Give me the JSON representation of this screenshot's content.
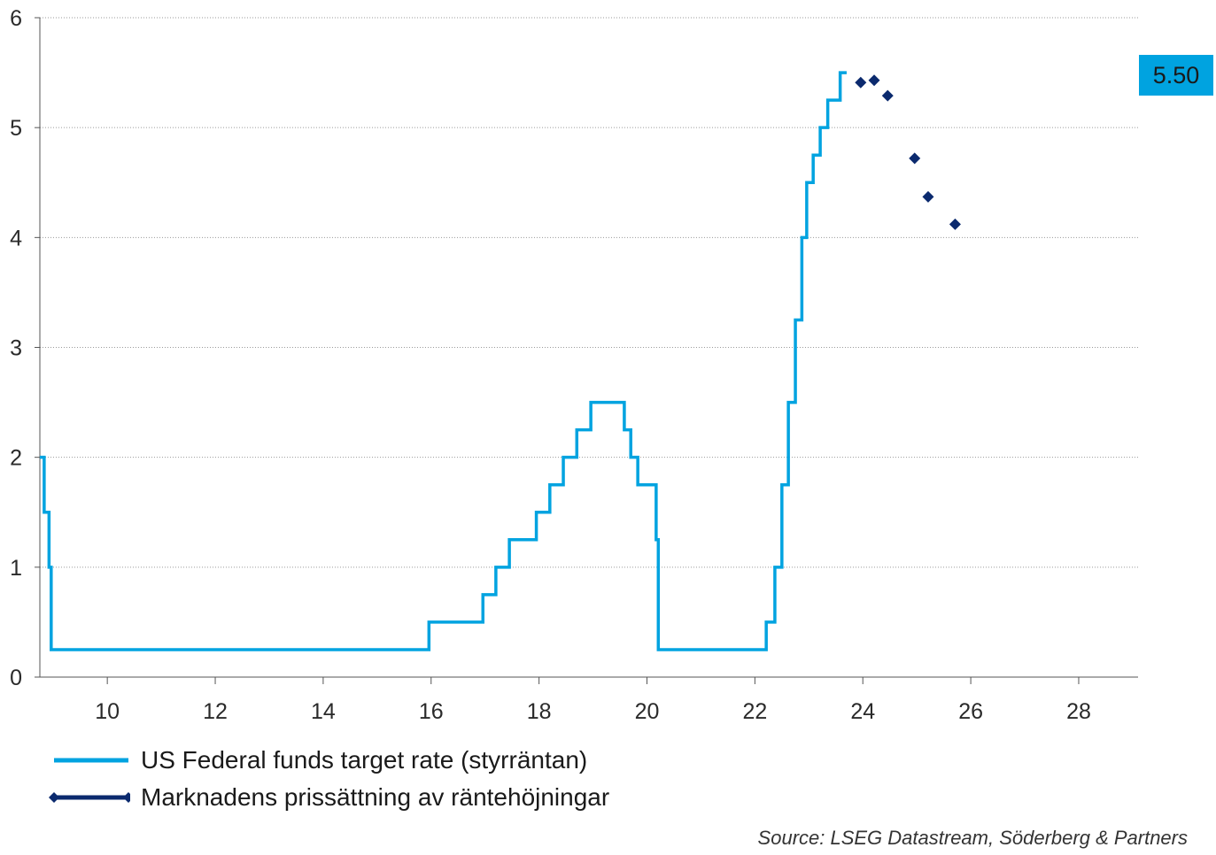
{
  "chart_data": {
    "type": "line",
    "title": "",
    "xlabel": "",
    "ylabel": "",
    "xlim": [
      8.75,
      29.1
    ],
    "ylim": [
      0,
      6
    ],
    "x_ticks": [
      10,
      12,
      14,
      16,
      18,
      20,
      22,
      24,
      26,
      28
    ],
    "y_ticks": [
      0,
      1,
      2,
      3,
      4,
      5,
      6
    ],
    "grid": "horizontal dotted",
    "colors": {
      "fed_rate": "#00a3e0",
      "market": "#0b2a6e",
      "badge": "#00a3e0"
    },
    "series": [
      {
        "name": "US Federal funds target rate (styrräntan)",
        "style": "step",
        "points": [
          [
            8.75,
            2.0
          ],
          [
            8.83,
            1.5
          ],
          [
            8.92,
            1.0
          ],
          [
            8.96,
            0.25
          ],
          [
            15.96,
            0.5
          ],
          [
            16.96,
            0.75
          ],
          [
            17.2,
            1.0
          ],
          [
            17.45,
            1.25
          ],
          [
            17.95,
            1.5
          ],
          [
            18.2,
            1.75
          ],
          [
            18.45,
            2.0
          ],
          [
            18.7,
            2.25
          ],
          [
            18.96,
            2.5
          ],
          [
            19.58,
            2.25
          ],
          [
            19.7,
            2.0
          ],
          [
            19.83,
            1.75
          ],
          [
            20.17,
            1.25
          ],
          [
            20.21,
            0.25
          ],
          [
            22.21,
            0.5
          ],
          [
            22.37,
            1.0
          ],
          [
            22.5,
            1.75
          ],
          [
            22.62,
            2.5
          ],
          [
            22.75,
            3.25
          ],
          [
            22.87,
            4.0
          ],
          [
            22.96,
            4.5
          ],
          [
            23.08,
            4.75
          ],
          [
            23.21,
            5.0
          ],
          [
            23.35,
            5.25
          ],
          [
            23.58,
            5.5
          ],
          [
            23.7,
            5.5
          ]
        ]
      },
      {
        "name": "Marknadens prissättning av räntehöjningar",
        "style": "markers",
        "points": [
          [
            23.96,
            5.41
          ],
          [
            24.21,
            5.43
          ],
          [
            24.46,
            5.29
          ],
          [
            24.96,
            4.72
          ],
          [
            25.21,
            4.37
          ],
          [
            25.71,
            4.12
          ]
        ]
      }
    ],
    "badge_label": "5.50",
    "source": "Source: LSEG Datastream, Söderberg & Partners"
  }
}
